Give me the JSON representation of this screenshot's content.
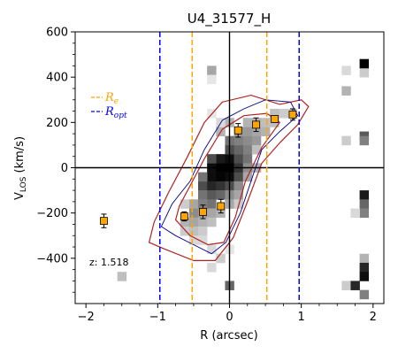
{
  "chart_data": {
    "type": "scatter",
    "title": "U4_31577_H",
    "xlabel": "R (arcsec)",
    "ylabel_main": "V",
    "ylabel_sub": "LOS",
    "ylabel_unit": " (km/s)",
    "xlim": [
      -2.15,
      2.15
    ],
    "ylim": [
      -600,
      600
    ],
    "xticks": [
      -2,
      -1,
      0,
      1,
      2
    ],
    "xtick_labels": [
      "−2",
      "−1",
      "0",
      "1",
      "2"
    ],
    "yticks": [
      -400,
      -200,
      0,
      200,
      400,
      600
    ],
    "ytick_labels": [
      "−400",
      "−200",
      "0",
      "200",
      "400",
      "600"
    ],
    "annotation": "z: 1.518",
    "legend": {
      "placement": "upper-left",
      "entries": [
        {
          "label": "R",
          "sub": "e",
          "color": "#ffa500",
          "style": "dashed"
        },
        {
          "label": "R",
          "sub": "opt",
          "color": "#0000ff",
          "style": "dashed"
        }
      ]
    },
    "vlines": [
      {
        "x": -0.52,
        "color": "#ffa500",
        "series": "Re"
      },
      {
        "x": 0.52,
        "color": "#ffa500",
        "series": "Re"
      },
      {
        "x": -0.97,
        "color": "#0000ff",
        "series": "Ropt"
      },
      {
        "x": 0.97,
        "color": "#0000ff",
        "series": "Ropt"
      }
    ],
    "points": [
      {
        "x": -1.75,
        "y": -235,
        "yerr": 30,
        "xerr": 0.05
      },
      {
        "x": -0.63,
        "y": -215,
        "yerr": 20,
        "xerr": 0.05
      },
      {
        "x": -0.37,
        "y": -195,
        "yerr": 30,
        "xerr": 0.05
      },
      {
        "x": -0.12,
        "y": -170,
        "yerr": 30,
        "xerr": 0.05
      },
      {
        "x": 0.12,
        "y": 165,
        "yerr": 30,
        "xerr": 0.05
      },
      {
        "x": 0.37,
        "y": 190,
        "yerr": 30,
        "xerr": 0.05
      },
      {
        "x": 0.63,
        "y": 215,
        "yerr": 15,
        "xerr": 0.05
      },
      {
        "x": 0.88,
        "y": 235,
        "yerr": 25,
        "xerr": 0.05
      }
    ],
    "pixel_map": {
      "dx": 0.125,
      "dy": 40,
      "cells": [
        [
          -0.25,
          -40,
          0.95
        ],
        [
          -0.125,
          -40,
          0.98
        ],
        [
          0,
          -40,
          0.95
        ],
        [
          0.125,
          -40,
          0.7
        ],
        [
          -0.25,
          0,
          0.95
        ],
        [
          -0.125,
          0,
          1.0
        ],
        [
          0,
          0,
          1.0
        ],
        [
          0.125,
          0,
          0.8
        ],
        [
          -0.125,
          40,
          0.9
        ],
        [
          0,
          40,
          0.95
        ],
        [
          0.125,
          40,
          0.7
        ],
        [
          -0.375,
          -80,
          0.7
        ],
        [
          -0.25,
          -80,
          0.85
        ],
        [
          -0.125,
          -80,
          0.8
        ],
        [
          0,
          -80,
          0.7
        ],
        [
          -0.375,
          -120,
          0.55
        ],
        [
          -0.25,
          -120,
          0.65
        ],
        [
          -0.125,
          -120,
          0.6
        ],
        [
          0,
          -120,
          0.45
        ],
        [
          -0.5,
          -160,
          0.35
        ],
        [
          -0.375,
          -160,
          0.5
        ],
        [
          -0.25,
          -160,
          0.55
        ],
        [
          0,
          -160,
          0.35
        ],
        [
          -0.5,
          -200,
          0.45
        ],
        [
          -0.375,
          -200,
          0.4
        ],
        [
          -0.25,
          -200,
          0.35
        ],
        [
          -0.125,
          -200,
          0.3
        ],
        [
          -0.625,
          -240,
          0.3
        ],
        [
          -0.5,
          -240,
          0.35
        ],
        [
          -0.375,
          -240,
          0.3
        ],
        [
          -0.25,
          -240,
          0.25
        ],
        [
          -0.625,
          -280,
          0.2
        ],
        [
          -0.5,
          -280,
          0.25
        ],
        [
          -0.375,
          -280,
          0.2
        ],
        [
          -0.5,
          -320,
          0.15
        ],
        [
          -0.375,
          -320,
          0.15
        ],
        [
          0.25,
          40,
          0.55
        ],
        [
          0.25,
          80,
          0.5
        ],
        [
          0.125,
          80,
          0.6
        ],
        [
          0,
          80,
          0.7
        ],
        [
          0.25,
          120,
          0.45
        ],
        [
          0.375,
          120,
          0.4
        ],
        [
          0.125,
          120,
          0.5
        ],
        [
          0,
          120,
          0.55
        ],
        [
          0.375,
          160,
          0.35
        ],
        [
          0.5,
          160,
          0.3
        ],
        [
          0.25,
          160,
          0.4
        ],
        [
          0.125,
          160,
          0.4
        ],
        [
          0.5,
          200,
          0.25
        ],
        [
          0.625,
          200,
          0.25
        ],
        [
          0.375,
          200,
          0.3
        ],
        [
          0.25,
          200,
          0.3
        ],
        [
          0.75,
          240,
          0.2
        ],
        [
          0.875,
          240,
          0.2
        ],
        [
          0.625,
          240,
          0.25
        ],
        [
          0,
          200,
          0.3
        ],
        [
          -0.125,
          160,
          0.3
        ],
        [
          -0.25,
          40,
          0.7
        ],
        [
          -0.375,
          -40,
          0.55
        ],
        [
          0.375,
          0,
          0.3
        ],
        [
          0.25,
          0,
          0.45
        ],
        [
          0.25,
          -40,
          0.35
        ],
        [
          0.125,
          -80,
          0.45
        ],
        [
          0.125,
          -120,
          0.35
        ],
        [
          -0.625,
          -160,
          0.2
        ],
        [
          0.125,
          -160,
          0.2
        ],
        [
          -0.25,
          240,
          0.1
        ],
        [
          -0.125,
          200,
          0.15
        ],
        [
          0.375,
          80,
          0.25
        ],
        [
          -0.25,
          -360,
          0.15
        ],
        [
          -0.125,
          -400,
          0.2
        ],
        [
          0,
          -360,
          0.1
        ],
        [
          -0.25,
          -440,
          0.15
        ],
        [
          0,
          -520,
          0.6
        ],
        [
          -1.5,
          -480,
          0.25
        ],
        [
          -0.25,
          430,
          0.35
        ],
        [
          -0.25,
          390,
          0.1
        ],
        [
          1.625,
          430,
          0.15
        ],
        [
          1.875,
          420,
          0.2
        ],
        [
          1.625,
          340,
          0.3
        ],
        [
          1.875,
          460,
          1.0
        ],
        [
          1.875,
          140,
          0.65
        ],
        [
          1.875,
          120,
          0.5
        ],
        [
          1.625,
          120,
          0.2
        ],
        [
          1.875,
          -120,
          0.9
        ],
        [
          1.875,
          -160,
          0.6
        ],
        [
          1.875,
          -200,
          0.5
        ],
        [
          1.75,
          -200,
          0.15
        ],
        [
          1.875,
          -400,
          0.3
        ],
        [
          1.875,
          -440,
          0.85
        ],
        [
          1.875,
          -480,
          0.95
        ],
        [
          1.625,
          -520,
          0.2
        ],
        [
          1.75,
          -520,
          0.85
        ],
        [
          1.875,
          -560,
          0.5
        ]
      ]
    },
    "contours": {
      "red_outer": [
        [
          -1.12,
          -330
        ],
        [
          -0.9,
          -360
        ],
        [
          -0.5,
          -410
        ],
        [
          -0.2,
          -410
        ],
        [
          0.05,
          -310
        ],
        [
          0.25,
          -150
        ],
        [
          0.45,
          20
        ],
        [
          0.7,
          110
        ],
        [
          0.95,
          190
        ],
        [
          1.1,
          270
        ],
        [
          1.0,
          300
        ],
        [
          0.7,
          280
        ],
        [
          0.3,
          320
        ],
        [
          -0.1,
          290
        ],
        [
          -0.35,
          200
        ],
        [
          -0.6,
          40
        ],
        [
          -0.85,
          -110
        ],
        [
          -1.05,
          -240
        ]
      ],
      "red_inner": [
        [
          -0.75,
          -230
        ],
        [
          -0.55,
          -300
        ],
        [
          -0.3,
          -340
        ],
        [
          -0.08,
          -330
        ],
        [
          0.08,
          -220
        ],
        [
          0.22,
          -60
        ],
        [
          0.45,
          90
        ],
        [
          0.7,
          200
        ],
        [
          0.52,
          240
        ],
        [
          0.2,
          230
        ],
        [
          -0.1,
          170
        ],
        [
          -0.35,
          40
        ],
        [
          -0.55,
          -80
        ],
        [
          -0.7,
          -170
        ]
      ],
      "blue_main": [
        [
          -0.95,
          -260
        ],
        [
          -0.75,
          -300
        ],
        [
          -0.5,
          -340
        ],
        [
          -0.25,
          -380
        ],
        [
          -0.05,
          -330
        ],
        [
          0.15,
          -200
        ],
        [
          0.3,
          -60
        ],
        [
          0.45,
          80
        ],
        [
          0.7,
          160
        ],
        [
          0.95,
          230
        ],
        [
          0.85,
          290
        ],
        [
          0.5,
          300
        ],
        [
          0.2,
          260
        ],
        [
          -0.1,
          210
        ],
        [
          -0.35,
          80
        ],
        [
          -0.55,
          -60
        ],
        [
          -0.8,
          -160
        ]
      ]
    }
  }
}
